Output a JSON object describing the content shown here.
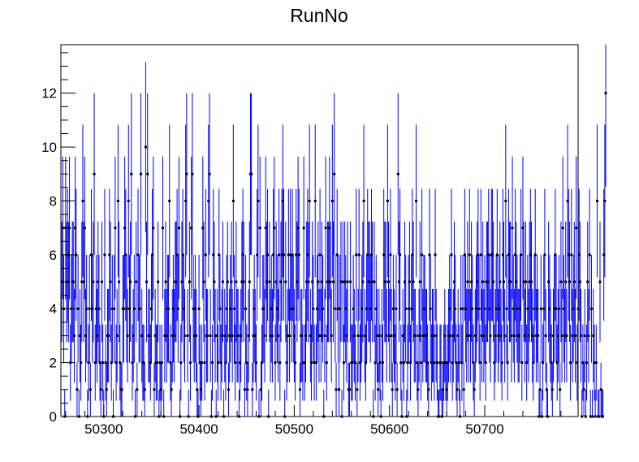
{
  "colors": {
    "background": "#ffffff",
    "errorbar": "#0000ff",
    "marker": "#000000",
    "frame": "#000000"
  },
  "chart_data": {
    "type": "scatter",
    "title": "RunNo",
    "xlabel": "",
    "ylabel": "",
    "xlim": [
      50255,
      50798
    ],
    "ylim": [
      0,
      13.8
    ],
    "grid": false,
    "legend": "none",
    "x_ticks": [
      50300,
      50400,
      50500,
      50600,
      50700
    ],
    "y_ticks": [
      0,
      2,
      4,
      6,
      8,
      10,
      12
    ],
    "x_tick_labels": [
      "50300",
      "50400",
      "50500",
      "50600",
      "50700"
    ],
    "y_tick_labels": [
      "0",
      "2",
      "4",
      "6",
      "8",
      "10",
      "12"
    ],
    "series": [
      {
        "x_start": 50256,
        "x_step": 1,
        "values": [
          5,
          7,
          4,
          0,
          7,
          5,
          6,
          5,
          7,
          2,
          4,
          5,
          5,
          3,
          7,
          6,
          1,
          4,
          0,
          3,
          2,
          5,
          8,
          5,
          7,
          3,
          4,
          0,
          2,
          4,
          1,
          6,
          4,
          5,
          9,
          2,
          4,
          3,
          5,
          4,
          2,
          1,
          5,
          2,
          0,
          6,
          2,
          1,
          3,
          3,
          6,
          5,
          2,
          4,
          0,
          4,
          7,
          2,
          3,
          8,
          5,
          2,
          1,
          1,
          4,
          4,
          7,
          6,
          4,
          3,
          8,
          4,
          5,
          9,
          2,
          3,
          4,
          0,
          5,
          1,
          6,
          4,
          4,
          9,
          3,
          2,
          2,
          1,
          10,
          5,
          9,
          3,
          3,
          2,
          4,
          6,
          7,
          1,
          3,
          2,
          2,
          5,
          0,
          2,
          1,
          2,
          7,
          0,
          3,
          5,
          3,
          4,
          4,
          8,
          2,
          1,
          3,
          4,
          3,
          5,
          5,
          6,
          4,
          7,
          0,
          2,
          5,
          6,
          4,
          3,
          8,
          9,
          3,
          0,
          5,
          2,
          7,
          9,
          4,
          3,
          4,
          3,
          1,
          0,
          4,
          2,
          1,
          2,
          7,
          5,
          2,
          6,
          3,
          3,
          8,
          9,
          3,
          0,
          2,
          6,
          5,
          3,
          0,
          3,
          2,
          6,
          4,
          2,
          3,
          5,
          0,
          3,
          2,
          4,
          5,
          1,
          3,
          4,
          5,
          3,
          8,
          4,
          2,
          5,
          3,
          3,
          0,
          2,
          3,
          5,
          6,
          5,
          1,
          4,
          2,
          1,
          3,
          5,
          9,
          9,
          1,
          3,
          4,
          3,
          2,
          6,
          8,
          0,
          7,
          1,
          2,
          4,
          4,
          3,
          7,
          5,
          6,
          0,
          5,
          3,
          4,
          3,
          6,
          7,
          2,
          5,
          4,
          3,
          6,
          2,
          5,
          6,
          8,
          6,
          0,
          5,
          2,
          3,
          6,
          3,
          6,
          4,
          6,
          4,
          3,
          2,
          6,
          5,
          7,
          6,
          1,
          3,
          3,
          2,
          7,
          2,
          3,
          5,
          6,
          5,
          8,
          3,
          2,
          5,
          4,
          2,
          8,
          2,
          4,
          5,
          3,
          6,
          3,
          5,
          4,
          0,
          3,
          7,
          2,
          5,
          5,
          7,
          5,
          3,
          8,
          5,
          9,
          4,
          1,
          6,
          4,
          1,
          4,
          5,
          0,
          5,
          2,
          5,
          4,
          3,
          5,
          1,
          1,
          5,
          2,
          2,
          4,
          3,
          2,
          6,
          1,
          3,
          6,
          2,
          3,
          4,
          5,
          8,
          3,
          2,
          4,
          6,
          5,
          5,
          4,
          6,
          5,
          0,
          5,
          2,
          4,
          3,
          1,
          3,
          2,
          0,
          3,
          2,
          6,
          5,
          5,
          3,
          8,
          5,
          3,
          6,
          3,
          1,
          4,
          3,
          2,
          4,
          1,
          9,
          5,
          6,
          2,
          0,
          3,
          2,
          5,
          4,
          0,
          2,
          4,
          5,
          2,
          4,
          6,
          5,
          3,
          3,
          8,
          2,
          1,
          3,
          5,
          2,
          6,
          3,
          4,
          4,
          3,
          3,
          2,
          1,
          6,
          4,
          2,
          3,
          3,
          2,
          6,
          3,
          2,
          0,
          0,
          2,
          2,
          0,
          1,
          2,
          3,
          2,
          1,
          2,
          3,
          4,
          3,
          6,
          2,
          3,
          5,
          4,
          2,
          1,
          3,
          2,
          0,
          4,
          2,
          4,
          1,
          6,
          4,
          3,
          5,
          3,
          6,
          3,
          5,
          4,
          2,
          1,
          3,
          4,
          5,
          6,
          4,
          2,
          6,
          3,
          5,
          3,
          4,
          2,
          5,
          5,
          6,
          4,
          3,
          6,
          6,
          5,
          2,
          3,
          4,
          6,
          3,
          4,
          5,
          3,
          2,
          6,
          5,
          3,
          8,
          4,
          2,
          6,
          5,
          5,
          3,
          7,
          4,
          3,
          6,
          5,
          4,
          3,
          3,
          4,
          6,
          2,
          7,
          5,
          3,
          5,
          2,
          4,
          3,
          5,
          6,
          5,
          3,
          2,
          4,
          6,
          3,
          4,
          3,
          0,
          1,
          4,
          0,
          2,
          4,
          6,
          3,
          1,
          0,
          5,
          4,
          3,
          2,
          1,
          3,
          4,
          6,
          4,
          2,
          3,
          4,
          1,
          5,
          3,
          7,
          4,
          3,
          5,
          3,
          8,
          6,
          5,
          2,
          6,
          3,
          4,
          5,
          3,
          7,
          2,
          4,
          6,
          5,
          3,
          0,
          2,
          1,
          3,
          0,
          2,
          5,
          3,
          6,
          0,
          4,
          0,
          3,
          2,
          0,
          2,
          8,
          0,
          0,
          5,
          1,
          0,
          0,
          6,
          8,
          12
        ]
      }
    ]
  }
}
